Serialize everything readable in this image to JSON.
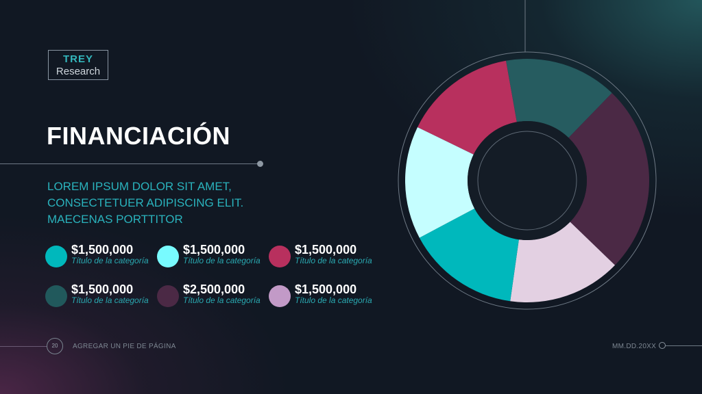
{
  "logo": {
    "line1": "TREY",
    "line2": "Research"
  },
  "slide": {
    "title": "FINANCIACIÓN",
    "subtitle": "LOREM IPSUM DOLOR SIT AMET, CONSECTETUER ADIPISCING ELIT. MAECENAS PORTTITOR"
  },
  "legend": [
    {
      "value": "$1,500,000",
      "label": "Título de la categoría",
      "color": "#00b8bc"
    },
    {
      "value": "$1,500,000",
      "label": "Título de la categoría",
      "color": "#78fbff"
    },
    {
      "value": "$1,500,000",
      "label": "Título de la categoría",
      "color": "#b8305e"
    },
    {
      "value": "$1,500,000",
      "label": "Título de la categoría",
      "color": "#21595c"
    },
    {
      "value": "$2,500,000",
      "label": "Título de la categoría",
      "color": "#4b2945"
    },
    {
      "value": "$1,500,000",
      "label": "Título de la categoría",
      "color": "#c29ac7"
    }
  ],
  "chart_data": {
    "type": "pie",
    "style": "donut",
    "categories": [
      "Título de la categoría",
      "Título de la categoría",
      "Título de la categoría",
      "Título de la categoría",
      "Título de la categoría",
      "Título de la categoría"
    ],
    "values": [
      1500000,
      1500000,
      2500000,
      1500000,
      1500000,
      1500000
    ],
    "colors": [
      "#b8305e",
      "#265c60",
      "#4b2945",
      "#e3d0e2",
      "#00b8bc",
      "#c5feff"
    ],
    "legend": "left"
  },
  "footer": {
    "page": "20",
    "text": "AGREGAR UN PIE DE PÁGINA",
    "date": "MM.DD.20XX"
  }
}
